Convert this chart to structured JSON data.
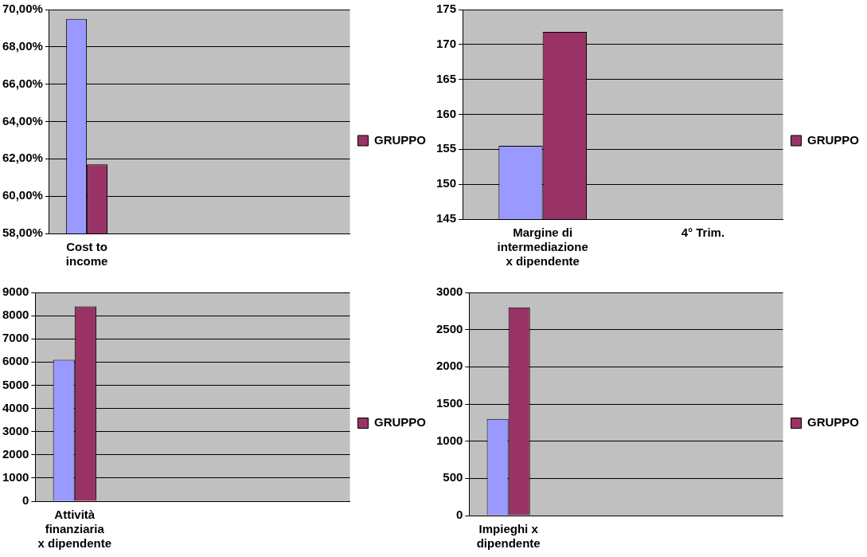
{
  "chart_data": [
    {
      "type": "bar",
      "categories": [
        "Cost to income",
        null,
        null,
        null
      ],
      "series": [
        {
          "color": "#9999ff",
          "values": [
            69.5,
            null,
            null,
            null
          ]
        },
        {
          "name": "GRUPPO",
          "color": "#993366",
          "values": [
            61.7,
            null,
            null,
            null
          ]
        }
      ],
      "ylim": [
        58,
        70
      ],
      "yticks": [
        {
          "value": 58,
          "label": "58,00%"
        },
        {
          "value": 60,
          "label": "60,00%"
        },
        {
          "value": 62,
          "label": "62,00%"
        },
        {
          "value": 64,
          "label": "64,00%"
        },
        {
          "value": 66,
          "label": "66,00%"
        },
        {
          "value": 68,
          "label": "68,00%"
        },
        {
          "value": 70,
          "label": "70,00%"
        }
      ],
      "grid": "y",
      "legend": "right"
    },
    {
      "type": "bar",
      "categories": [
        "Margine di intermediazione x dipendente",
        "4° Trim."
      ],
      "series": [
        {
          "color": "#9999ff",
          "values": [
            155.5,
            null
          ]
        },
        {
          "name": "GRUPPO",
          "color": "#993366",
          "values": [
            171.8,
            null
          ]
        }
      ],
      "ylim": [
        145,
        175
      ],
      "yticks": [
        145,
        150,
        155,
        160,
        165,
        170,
        175
      ],
      "grid": "y",
      "legend": "right"
    },
    {
      "type": "bar",
      "categories": [
        "Attività finanziaria x dipendente",
        null,
        null,
        null
      ],
      "series": [
        {
          "color": "#9999ff",
          "values": [
            6100,
            null,
            null,
            null
          ]
        },
        {
          "name": "GRUPPO",
          "color": "#993366",
          "values": [
            8400,
            null,
            null,
            null
          ]
        }
      ],
      "ylim": [
        0,
        9000
      ],
      "yticks": [
        0,
        1000,
        2000,
        3000,
        4000,
        5000,
        6000,
        7000,
        8000,
        9000
      ],
      "grid": "y",
      "legend": "right"
    },
    {
      "type": "bar",
      "categories": [
        "Impieghi x dipendente",
        null,
        null,
        null
      ],
      "series": [
        {
          "color": "#9999ff",
          "values": [
            1300,
            null,
            null,
            null
          ]
        },
        {
          "name": "GRUPPO",
          "color": "#993366",
          "values": [
            2800,
            null,
            null,
            null
          ]
        }
      ],
      "ylim": [
        0,
        3000
      ],
      "yticks": [
        0,
        500,
        1000,
        1500,
        2000,
        2500,
        3000
      ],
      "grid": "y",
      "legend": "right"
    }
  ]
}
